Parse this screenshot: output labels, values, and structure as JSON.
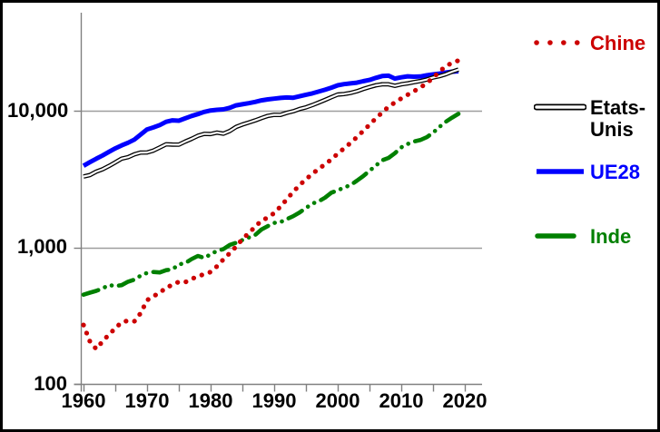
{
  "chart_data": {
    "type": "line",
    "title": "",
    "xlabel": "",
    "ylabel": "",
    "yscale": "log",
    "grid": "horizontal-major",
    "legend_position": "right",
    "xlim": [
      1960,
      2022.7
    ],
    "ylim": [
      100,
      51400
    ],
    "axis_color": "#808080",
    "gridline_color": "#9e9e9e",
    "background_color": "#ffffff",
    "xticks": [
      1960,
      1965,
      1970,
      1975,
      1980,
      1985,
      1990,
      1995,
      2000,
      2005,
      2010,
      2015,
      2020
    ],
    "xticklabels": [
      "1960",
      "1970",
      "1980",
      "1990",
      "2000",
      "2010",
      "2020"
    ],
    "xticklabel_years": [
      1960,
      1970,
      1980,
      1990,
      2000,
      2010,
      2020
    ],
    "yticks": [
      100,
      1000,
      10000
    ],
    "yticklabels": [
      "100",
      "1,000",
      "10,000"
    ],
    "x": [
      1960,
      1961,
      1962,
      1963,
      1964,
      1965,
      1966,
      1967,
      1968,
      1969,
      1970,
      1971,
      1972,
      1973,
      1974,
      1975,
      1976,
      1977,
      1978,
      1979,
      1980,
      1981,
      1982,
      1983,
      1984,
      1985,
      1986,
      1987,
      1988,
      1989,
      1990,
      1991,
      1992,
      1993,
      1994,
      1995,
      1996,
      1997,
      1998,
      1999,
      2000,
      2001,
      2002,
      2003,
      2004,
      2005,
      2006,
      2007,
      2008,
      2009,
      2010,
      2011,
      2012,
      2013,
      2014,
      2015,
      2016,
      2017,
      2018,
      2019
    ],
    "series": [
      {
        "name": "Chine",
        "color": "#cc0000",
        "style": "dotted",
        "values": [
          270,
          205,
          180,
          205,
          230,
          255,
          283,
          290,
          287,
          330,
          410,
          440,
          462,
          510,
          528,
          560,
          556,
          585,
          615,
          635,
          660,
          725,
          815,
          905,
          1010,
          1150,
          1270,
          1410,
          1570,
          1650,
          1780,
          1990,
          2250,
          2550,
          2850,
          3150,
          3450,
          3750,
          4050,
          4400,
          4850,
          5300,
          5800,
          6400,
          7100,
          7900,
          8800,
          9700,
          10700,
          11500,
          12300,
          13100,
          13900,
          14800,
          15900,
          17400,
          19300,
          21200,
          22400,
          23300
        ]
      },
      {
        "name": "Etats-Unis",
        "color": "#000000",
        "style": "double",
        "values": [
          3300,
          3380,
          3580,
          3730,
          3940,
          4190,
          4460,
          4570,
          4790,
          4940,
          4950,
          5110,
          5380,
          5680,
          5650,
          5640,
          5940,
          6220,
          6560,
          6770,
          6750,
          6920,
          6790,
          7100,
          7610,
          7930,
          8200,
          8490,
          8840,
          9160,
          9330,
          9320,
          9650,
          9910,
          10300,
          10590,
          10990,
          11480,
          11990,
          12560,
          13130,
          13260,
          13490,
          13880,
          14410,
          14910,
          15340,
          15620,
          15600,
          15210,
          15600,
          15840,
          16200,
          16500,
          16900,
          17500,
          17900,
          18500,
          19300,
          20000
        ]
      },
      {
        "name": "UE28",
        "color": "#0000ff",
        "style": "solid",
        "values": [
          3950,
          4200,
          4450,
          4700,
          5000,
          5300,
          5570,
          5830,
          6150,
          6700,
          7300,
          7550,
          7850,
          8300,
          8500,
          8450,
          8800,
          9150,
          9450,
          9800,
          10050,
          10150,
          10230,
          10500,
          10950,
          11150,
          11350,
          11600,
          11900,
          12100,
          12250,
          12400,
          12500,
          12450,
          12750,
          13100,
          13400,
          13800,
          14250,
          14750,
          15350,
          15650,
          15850,
          16050,
          16450,
          16800,
          17400,
          17950,
          18050,
          17200,
          17550,
          17850,
          17750,
          17800,
          18150,
          18450,
          18700,
          19000,
          19300,
          19450
        ]
      },
      {
        "name": "Inde",
        "color": "#008000",
        "style": "dash-dot-dot",
        "values": [
          450,
          465,
          480,
          500,
          530,
          520,
          528,
          560,
          580,
          620,
          650,
          660,
          655,
          680,
          690,
          750,
          765,
          820,
          865,
          835,
          890,
          940,
          970,
          1040,
          1080,
          1130,
          1180,
          1230,
          1350,
          1430,
          1510,
          1530,
          1610,
          1690,
          1800,
          1940,
          2090,
          2170,
          2310,
          2510,
          2610,
          2740,
          2850,
          3070,
          3320,
          3630,
          3960,
          4340,
          4510,
          4890,
          5390,
          5700,
          5950,
          6100,
          6400,
          6900,
          7600,
          8300,
          8900,
          9500
        ]
      }
    ]
  }
}
